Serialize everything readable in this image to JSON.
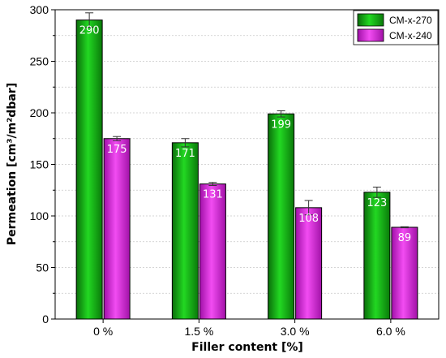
{
  "chart_data": {
    "type": "bar",
    "categories": [
      "0 %",
      "1.5 %",
      "3.0 %",
      "6.0 %"
    ],
    "series": [
      {
        "name": "CM-x-270",
        "values": [
          290,
          171,
          199,
          123
        ],
        "errors": [
          7,
          4,
          3,
          5
        ],
        "color": "#16b216"
      },
      {
        "name": "CM-x-240",
        "values": [
          175,
          131,
          108,
          89
        ],
        "errors": [
          2,
          1.5,
          7,
          0.5
        ],
        "color": "#e62ee6"
      }
    ],
    "data_labels": [
      [
        "290",
        "171",
        "199",
        "123"
      ],
      [
        "175",
        "131",
        "108",
        "89"
      ]
    ],
    "xlabel": "Filler content [%]",
    "ylabel": "Permeation [cm³/m²dbar]",
    "ylim": [
      0,
      300
    ],
    "yticks": [
      "0",
      "50",
      "100",
      "150",
      "200",
      "250",
      "300"
    ],
    "ytick_values": [
      0,
      50,
      100,
      150,
      200,
      250,
      300
    ],
    "grid": true,
    "legend_position": "top-right"
  }
}
